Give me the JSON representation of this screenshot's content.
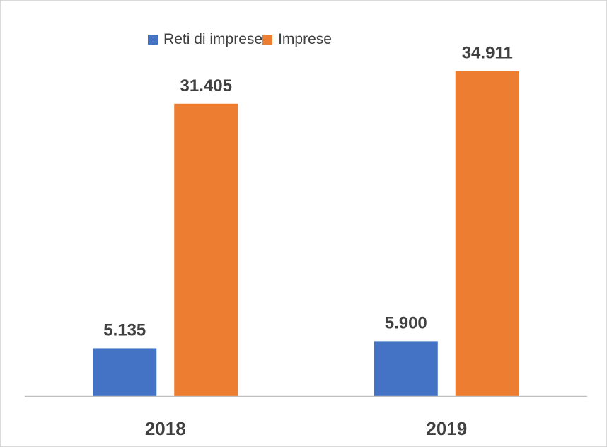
{
  "chart_data": {
    "type": "bar",
    "categories": [
      "2018",
      "2019"
    ],
    "series": [
      {
        "name": "Reti di imprese",
        "values": [
          5135,
          5900
        ],
        "labels": [
          "5.135",
          "5.900"
        ],
        "color": "#4472c4"
      },
      {
        "name": "Imprese",
        "values": [
          31405,
          34911
        ],
        "labels": [
          "31.405",
          "34.911"
        ],
        "color": "#ed7d31"
      }
    ],
    "title": "",
    "xlabel": "",
    "ylabel": "",
    "ylim": [
      0,
      38000
    ],
    "grid": false,
    "legend_position": "top"
  }
}
